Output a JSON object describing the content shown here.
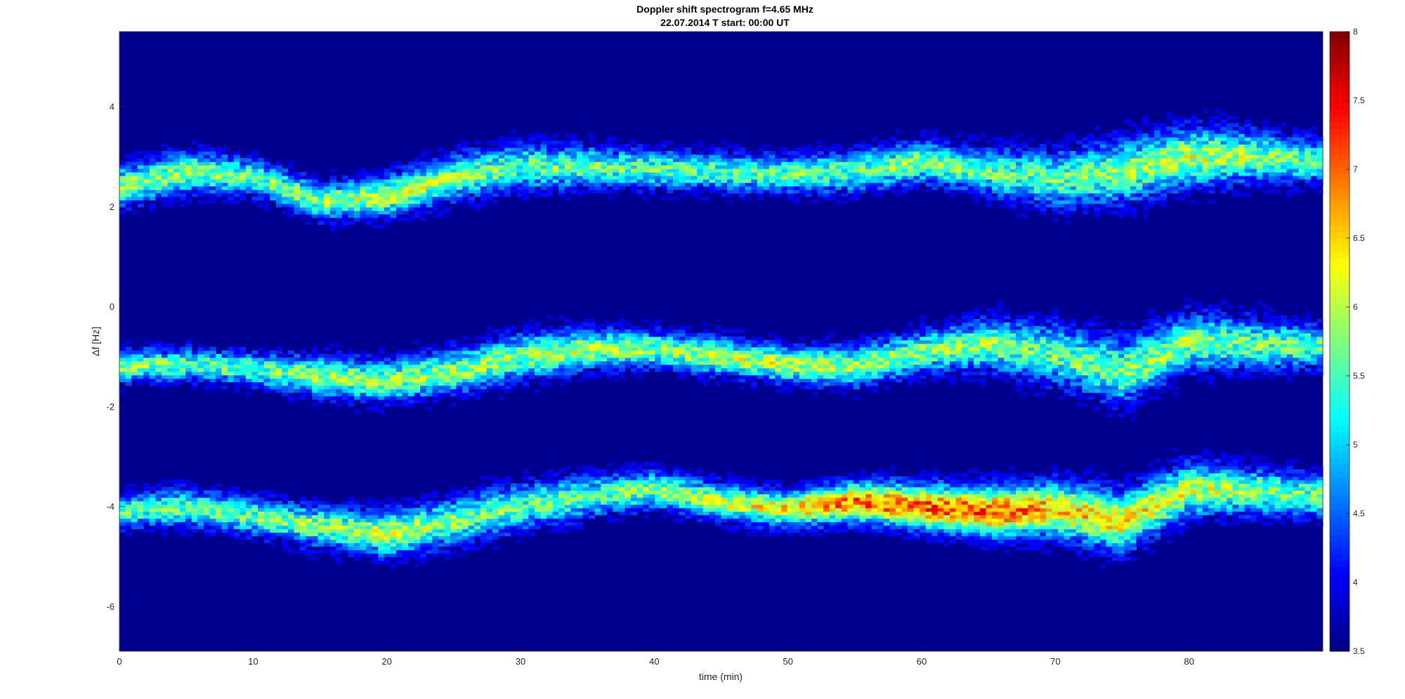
{
  "chart_data": {
    "type": "heatmap",
    "title": "Doppler shift spectrogram f=4.65 MHz",
    "subtitle": "22.07.2014   T start: 00:00 UT",
    "xlabel": "time (min)",
    "ylabel": "Δf [Hz]",
    "xlim": [
      0,
      90
    ],
    "ylim": [
      -6.9,
      5.5
    ],
    "xticks": [
      "0",
      "10",
      "20",
      "30",
      "40",
      "50",
      "60",
      "70",
      "80"
    ],
    "xtick_values": [
      0,
      10,
      20,
      30,
      40,
      50,
      60,
      70,
      80
    ],
    "yticks": [
      "4",
      "2",
      "0",
      "-2",
      "-4",
      "-6"
    ],
    "ytick_values": [
      4,
      2,
      0,
      -2,
      -4,
      -6
    ],
    "colormap": "jet",
    "colorbar": {
      "range": [
        3.5,
        8
      ],
      "ticks": [
        "8",
        "7.5",
        "7",
        "6.5",
        "6",
        "5.5",
        "5",
        "4.5",
        "4",
        "3.5"
      ],
      "tick_values": [
        8,
        7.5,
        7,
        6.5,
        6,
        5.5,
        5,
        4.5,
        4,
        3.5
      ]
    },
    "background_level": 3.6,
    "series": [
      {
        "x": [
          0,
          5,
          10,
          15,
          20,
          25,
          30,
          35,
          40,
          45,
          50,
          55,
          60,
          65,
          70,
          75,
          80,
          85,
          90
        ],
        "y": [
          2.4,
          2.7,
          2.6,
          2.1,
          2.2,
          2.6,
          2.8,
          2.8,
          2.75,
          2.7,
          2.65,
          2.7,
          2.9,
          2.7,
          2.55,
          2.7,
          3.0,
          3.0,
          2.9
        ],
        "width": [
          0.45,
          0.45,
          0.4,
          0.4,
          0.45,
          0.5,
          0.5,
          0.45,
          0.4,
          0.4,
          0.4,
          0.45,
          0.45,
          0.5,
          0.6,
          0.7,
          0.65,
          0.55,
          0.45
        ],
        "peak": [
          5.8,
          5.8,
          5.6,
          5.8,
          6.0,
          5.8,
          5.6,
          5.6,
          5.6,
          5.6,
          5.6,
          5.6,
          5.8,
          5.6,
          5.6,
          5.8,
          6.0,
          5.8,
          5.6
        ]
      },
      {
        "x": [
          0,
          5,
          10,
          15,
          20,
          25,
          30,
          35,
          40,
          45,
          50,
          55,
          60,
          65,
          70,
          75,
          80,
          85,
          90
        ],
        "y": [
          -1.2,
          -1.15,
          -1.25,
          -1.4,
          -1.5,
          -1.3,
          -1.0,
          -0.85,
          -0.85,
          -1.0,
          -1.15,
          -1.2,
          -0.9,
          -0.75,
          -0.95,
          -1.3,
          -0.7,
          -0.75,
          -0.8
        ],
        "width": [
          0.35,
          0.35,
          0.35,
          0.45,
          0.45,
          0.5,
          0.5,
          0.45,
          0.4,
          0.4,
          0.4,
          0.45,
          0.45,
          0.55,
          0.65,
          0.7,
          0.6,
          0.55,
          0.45
        ],
        "peak": [
          5.8,
          5.6,
          5.6,
          5.8,
          5.8,
          5.8,
          5.8,
          6.0,
          5.8,
          6.0,
          6.0,
          5.8,
          5.8,
          5.8,
          5.6,
          5.8,
          5.8,
          5.6,
          5.6
        ]
      },
      {
        "x": [
          0,
          5,
          10,
          15,
          20,
          25,
          30,
          35,
          40,
          45,
          50,
          55,
          60,
          65,
          70,
          75,
          80,
          85,
          90
        ],
        "y": [
          -4.1,
          -4.0,
          -4.2,
          -4.4,
          -4.55,
          -4.3,
          -4.0,
          -3.8,
          -3.65,
          -3.9,
          -4.05,
          -3.9,
          -4.0,
          -4.1,
          -4.05,
          -4.3,
          -3.65,
          -3.7,
          -3.8
        ],
        "width": [
          0.35,
          0.4,
          0.4,
          0.45,
          0.5,
          0.5,
          0.5,
          0.45,
          0.4,
          0.4,
          0.4,
          0.45,
          0.5,
          0.55,
          0.6,
          0.65,
          0.6,
          0.5,
          0.45
        ],
        "peak": [
          5.6,
          5.6,
          5.6,
          5.8,
          6.0,
          5.8,
          5.6,
          5.6,
          5.8,
          6.0,
          6.4,
          7.0,
          7.0,
          7.2,
          6.6,
          6.4,
          6.0,
          5.8,
          5.6
        ]
      }
    ]
  }
}
